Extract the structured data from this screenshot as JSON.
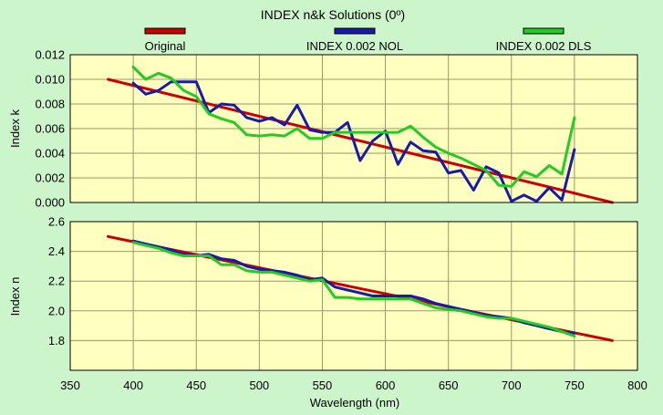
{
  "chart_data": {
    "type": "line",
    "title": "INDEX n&k Solutions (0º)",
    "xlabel": "Wavelength (nm)",
    "xlim": [
      350,
      800
    ],
    "x_ticks": [
      "350",
      "400",
      "450",
      "500",
      "550",
      "600",
      "650",
      "700",
      "750",
      "800"
    ],
    "legend_position": "top",
    "grid": true,
    "legend": [
      {
        "name": "Original",
        "color": "#cc0000"
      },
      {
        "name": "INDEX 0.002 NOL",
        "color": "#1a1aaa"
      },
      {
        "name": "INDEX 0.002 DLS",
        "color": "#22cc22"
      }
    ],
    "panels": [
      {
        "ylabel": "Index k",
        "ylim": [
          0,
          0.012
        ],
        "y_ticks": [
          "0.000",
          "0.002",
          "0.004",
          "0.006",
          "0.008",
          "0.010",
          "0.012"
        ],
        "series": [
          {
            "name": "Original",
            "color": "#cc0000",
            "x": [
              380,
              780
            ],
            "y": [
              0.01,
              0.0
            ]
          },
          {
            "name": "INDEX 0.002 NOL",
            "color": "#1a1aaa",
            "x": [
              400,
              410,
              420,
              430,
              440,
              450,
              460,
              470,
              480,
              490,
              500,
              510,
              520,
              530,
              540,
              550,
              560,
              570,
              580,
              590,
              600,
              610,
              620,
              630,
              640,
              650,
              660,
              670,
              680,
              690,
              700,
              710,
              720,
              730,
              740,
              750
            ],
            "y": [
              0.0097,
              0.0088,
              0.0091,
              0.0098,
              0.0098,
              0.0098,
              0.0073,
              0.008,
              0.0079,
              0.0069,
              0.0066,
              0.0069,
              0.0063,
              0.0079,
              0.0059,
              0.0057,
              0.0057,
              0.0065,
              0.0034,
              0.005,
              0.0058,
              0.0031,
              0.0049,
              0.0042,
              0.0041,
              0.0024,
              0.0026,
              0.001,
              0.0029,
              0.0024,
              0.0001,
              0.0006,
              0.0001,
              0.0012,
              0.0002,
              0.0043
            ]
          },
          {
            "name": "INDEX 0.002 DLS",
            "color": "#22cc22",
            "x": [
              400,
              410,
              420,
              430,
              440,
              450,
              460,
              470,
              480,
              490,
              500,
              510,
              520,
              530,
              540,
              550,
              560,
              570,
              580,
              590,
              600,
              610,
              620,
              630,
              640,
              650,
              660,
              670,
              680,
              690,
              700,
              710,
              720,
              730,
              740,
              750
            ],
            "y": [
              0.011,
              0.01,
              0.0105,
              0.0101,
              0.0091,
              0.0086,
              0.0072,
              0.0068,
              0.0065,
              0.0055,
              0.0054,
              0.0055,
              0.0054,
              0.006,
              0.0052,
              0.0052,
              0.0057,
              0.0057,
              0.0057,
              0.0057,
              0.0057,
              0.0057,
              0.0062,
              0.0053,
              0.0045,
              0.004,
              0.0036,
              0.0031,
              0.0026,
              0.0014,
              0.0013,
              0.0025,
              0.0021,
              0.003,
              0.0023,
              0.0069
            ]
          }
        ]
      },
      {
        "ylabel": "Index n",
        "ylim": [
          1.6,
          2.6
        ],
        "y_ticks": [
          "1.8",
          "2.0",
          "2.2",
          "2.4",
          "2.6"
        ],
        "series": [
          {
            "name": "Original",
            "color": "#cc0000",
            "x": [
              380,
              780
            ],
            "y": [
              2.5,
              1.8
            ]
          },
          {
            "name": "INDEX 0.002 NOL",
            "color": "#1a1aaa",
            "x": [
              400,
              410,
              420,
              430,
              440,
              450,
              460,
              470,
              480,
              490,
              500,
              510,
              520,
              530,
              540,
              550,
              560,
              570,
              580,
              590,
              600,
              610,
              620,
              630,
              640,
              650,
              660,
              670,
              680,
              690,
              700,
              710,
              720,
              730,
              740,
              750
            ],
            "y": [
              2.47,
              2.45,
              2.43,
              2.41,
              2.38,
              2.37,
              2.38,
              2.35,
              2.34,
              2.3,
              2.28,
              2.27,
              2.26,
              2.24,
              2.21,
              2.22,
              2.16,
              2.14,
              2.12,
              2.1,
              2.1,
              2.1,
              2.1,
              2.08,
              2.05,
              2.03,
              2.01,
              1.99,
              1.97,
              1.96,
              1.95,
              1.92,
              1.9,
              1.88,
              1.86,
              1.85
            ]
          },
          {
            "name": "INDEX 0.002 DLS",
            "color": "#22cc22",
            "x": [
              400,
              410,
              420,
              430,
              440,
              450,
              460,
              470,
              480,
              490,
              500,
              510,
              520,
              530,
              540,
              550,
              560,
              570,
              580,
              590,
              600,
              610,
              620,
              630,
              640,
              650,
              660,
              670,
              680,
              690,
              700,
              710,
              720,
              730,
              740,
              750
            ],
            "y": [
              2.46,
              2.44,
              2.42,
              2.39,
              2.37,
              2.37,
              2.37,
              2.31,
              2.31,
              2.27,
              2.26,
              2.26,
              2.24,
              2.22,
              2.2,
              2.21,
              2.09,
              2.09,
              2.08,
              2.08,
              2.08,
              2.08,
              2.08,
              2.05,
              2.02,
              2.01,
              2.0,
              1.98,
              1.96,
              1.95,
              1.95,
              1.93,
              1.91,
              1.89,
              1.86,
              1.83
            ]
          }
        ]
      }
    ]
  }
}
